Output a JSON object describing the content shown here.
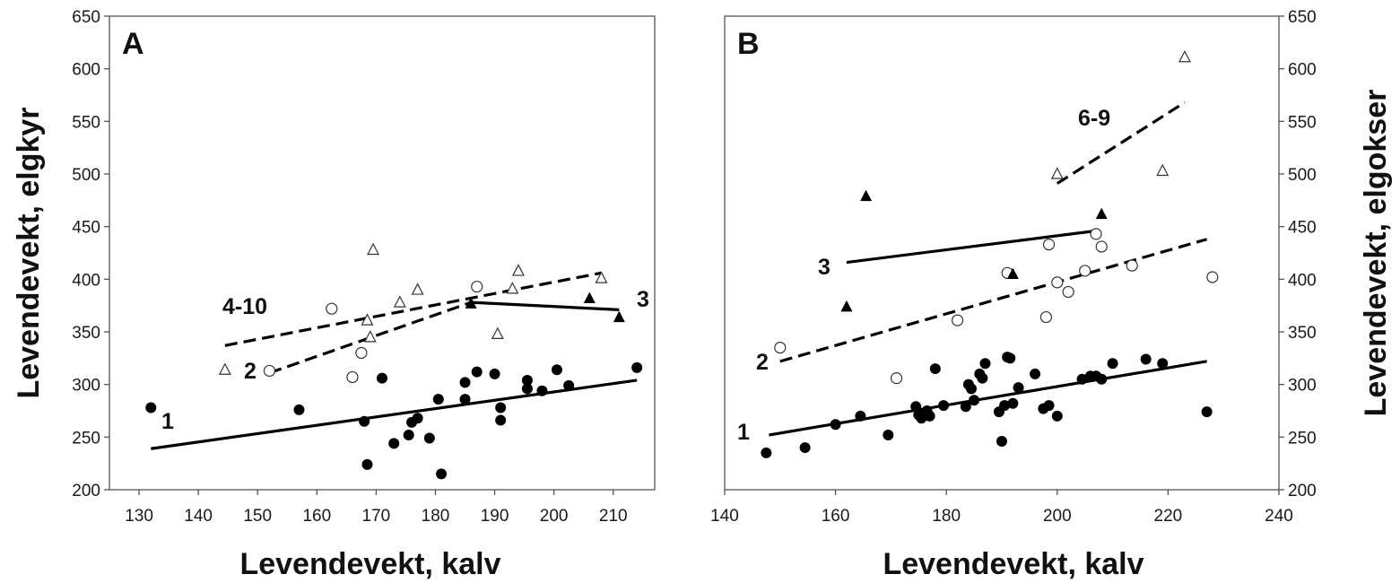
{
  "chart_data": [
    {
      "type": "scatter",
      "panel": "A",
      "xlabel": "Levendevekt, kalv",
      "ylabel": "Levendevekt, elgkyr",
      "xlim": [
        125,
        217
      ],
      "ylim": [
        200,
        650
      ],
      "xticks": [
        130,
        140,
        150,
        160,
        170,
        180,
        190,
        200,
        210
      ],
      "yticks": [
        200,
        250,
        300,
        350,
        400,
        450,
        500,
        550,
        600,
        650
      ],
      "grid": false,
      "series": [
        {
          "marker": "filled-circle",
          "points": [
            [
              132,
              278
            ],
            [
              157,
              276
            ],
            [
              168,
              265
            ],
            [
              168.5,
              224
            ],
            [
              171,
              306
            ],
            [
              173,
              244
            ],
            [
              175.5,
              252
            ],
            [
              176,
              264
            ],
            [
              177,
              268
            ],
            [
              179,
              249
            ],
            [
              180.5,
              286
            ],
            [
              181,
              215
            ],
            [
              185,
              302
            ],
            [
              185,
              286
            ],
            [
              187,
              312
            ],
            [
              190,
              310
            ],
            [
              191,
              278
            ],
            [
              191,
              266
            ],
            [
              195.5,
              304
            ],
            [
              195.5,
              296
            ],
            [
              198,
              294
            ],
            [
              200.5,
              314
            ],
            [
              202.5,
              299
            ],
            [
              214,
              316
            ]
          ]
        },
        {
          "marker": "open-circle",
          "points": [
            [
              152,
              313
            ],
            [
              162.5,
              372
            ],
            [
              166,
              307
            ],
            [
              167.5,
              330
            ],
            [
              187,
              393
            ]
          ]
        },
        {
          "marker": "open-triangle",
          "points": [
            [
              144.5,
              314
            ],
            [
              168.5,
              361
            ],
            [
              169,
              345
            ],
            [
              169.5,
              428
            ],
            [
              174,
              378
            ],
            [
              177,
              390
            ],
            [
              190.5,
              348
            ],
            [
              193,
              391
            ],
            [
              194,
              408
            ],
            [
              208,
              401
            ]
          ]
        },
        {
          "marker": "filled-triangle",
          "points": [
            [
              186,
              377
            ],
            [
              206,
              382
            ],
            [
              211,
              364
            ]
          ]
        }
      ],
      "fit_lines": [
        {
          "label": "1",
          "style": "solid",
          "x": [
            132,
            214
          ],
          "y": [
            239,
            304
          ]
        },
        {
          "label": "2",
          "style": "dashed",
          "x": [
            152,
            186
          ],
          "y": [
            311,
            378
          ]
        },
        {
          "label": "4-10",
          "style": "dashed",
          "x": [
            144.5,
            208
          ],
          "y": [
            337,
            406
          ]
        },
        {
          "label": "3",
          "style": "solid",
          "x": [
            186,
            211
          ],
          "y": [
            378,
            371
          ]
        }
      ]
    },
    {
      "type": "scatter",
      "panel": "B",
      "xlabel": "Levendevekt, kalv",
      "ylabel": "Levendevekt, elgokser",
      "xlim": [
        140,
        240
      ],
      "ylim": [
        200,
        650
      ],
      "xticks": [
        140,
        160,
        180,
        200,
        220,
        240
      ],
      "yticks": [
        200,
        250,
        300,
        350,
        400,
        450,
        500,
        550,
        600,
        650
      ],
      "grid": false,
      "series": [
        {
          "marker": "filled-circle",
          "points": [
            [
              147.5,
              235
            ],
            [
              154.5,
              240
            ],
            [
              160,
              262
            ],
            [
              164.5,
              270
            ],
            [
              169.5,
              252
            ],
            [
              174.5,
              279
            ],
            [
              175,
              271
            ],
            [
              175.5,
              268
            ],
            [
              176.5,
              275
            ],
            [
              177,
              270
            ],
            [
              178,
              315
            ],
            [
              179.5,
              280
            ],
            [
              183.5,
              279
            ],
            [
              184,
              300
            ],
            [
              184.5,
              296
            ],
            [
              185,
              285
            ],
            [
              186,
              310
            ],
            [
              186.5,
              306
            ],
            [
              187,
              320
            ],
            [
              189.5,
              274
            ],
            [
              190,
              246
            ],
            [
              190.5,
              280
            ],
            [
              191,
              326
            ],
            [
              191.5,
              325
            ],
            [
              192,
              282
            ],
            [
              193,
              297
            ],
            [
              196,
              310
            ],
            [
              197.5,
              277
            ],
            [
              198.5,
              280
            ],
            [
              200,
              270
            ],
            [
              204.5,
              305
            ],
            [
              206,
              308
            ],
            [
              207,
              308
            ],
            [
              208,
              305
            ],
            [
              210,
              320
            ],
            [
              216,
              324
            ],
            [
              219,
              320
            ],
            [
              227,
              274
            ]
          ]
        },
        {
          "marker": "open-circle",
          "points": [
            [
              150,
              335
            ],
            [
              171,
              306
            ],
            [
              182,
              361
            ],
            [
              191,
              406
            ],
            [
              198,
              364
            ],
            [
              198.5,
              433
            ],
            [
              200,
              397
            ],
            [
              202,
              388
            ],
            [
              205,
              408
            ],
            [
              207,
              443
            ],
            [
              208,
              431
            ],
            [
              213.5,
              413
            ],
            [
              228,
              402
            ]
          ]
        },
        {
          "marker": "open-triangle",
          "points": [
            [
              200,
              500
            ],
            [
              219,
              503
            ],
            [
              223,
              611
            ]
          ]
        },
        {
          "marker": "filled-triangle",
          "points": [
            [
              162,
              374
            ],
            [
              165.5,
              479
            ],
            [
              192,
              405
            ],
            [
              208,
              462
            ]
          ]
        }
      ],
      "fit_lines": [
        {
          "label": "1",
          "style": "solid",
          "x": [
            148,
            227
          ],
          "y": [
            252,
            322
          ]
        },
        {
          "label": "2",
          "style": "dashed",
          "x": [
            150,
            227
          ],
          "y": [
            322,
            438
          ]
        },
        {
          "label": "3",
          "style": "solid",
          "x": [
            162,
            207
          ],
          "y": [
            416,
            446
          ]
        },
        {
          "label": "6-9",
          "style": "dashed",
          "x": [
            200,
            223
          ],
          "y": [
            491,
            568
          ]
        }
      ]
    }
  ]
}
